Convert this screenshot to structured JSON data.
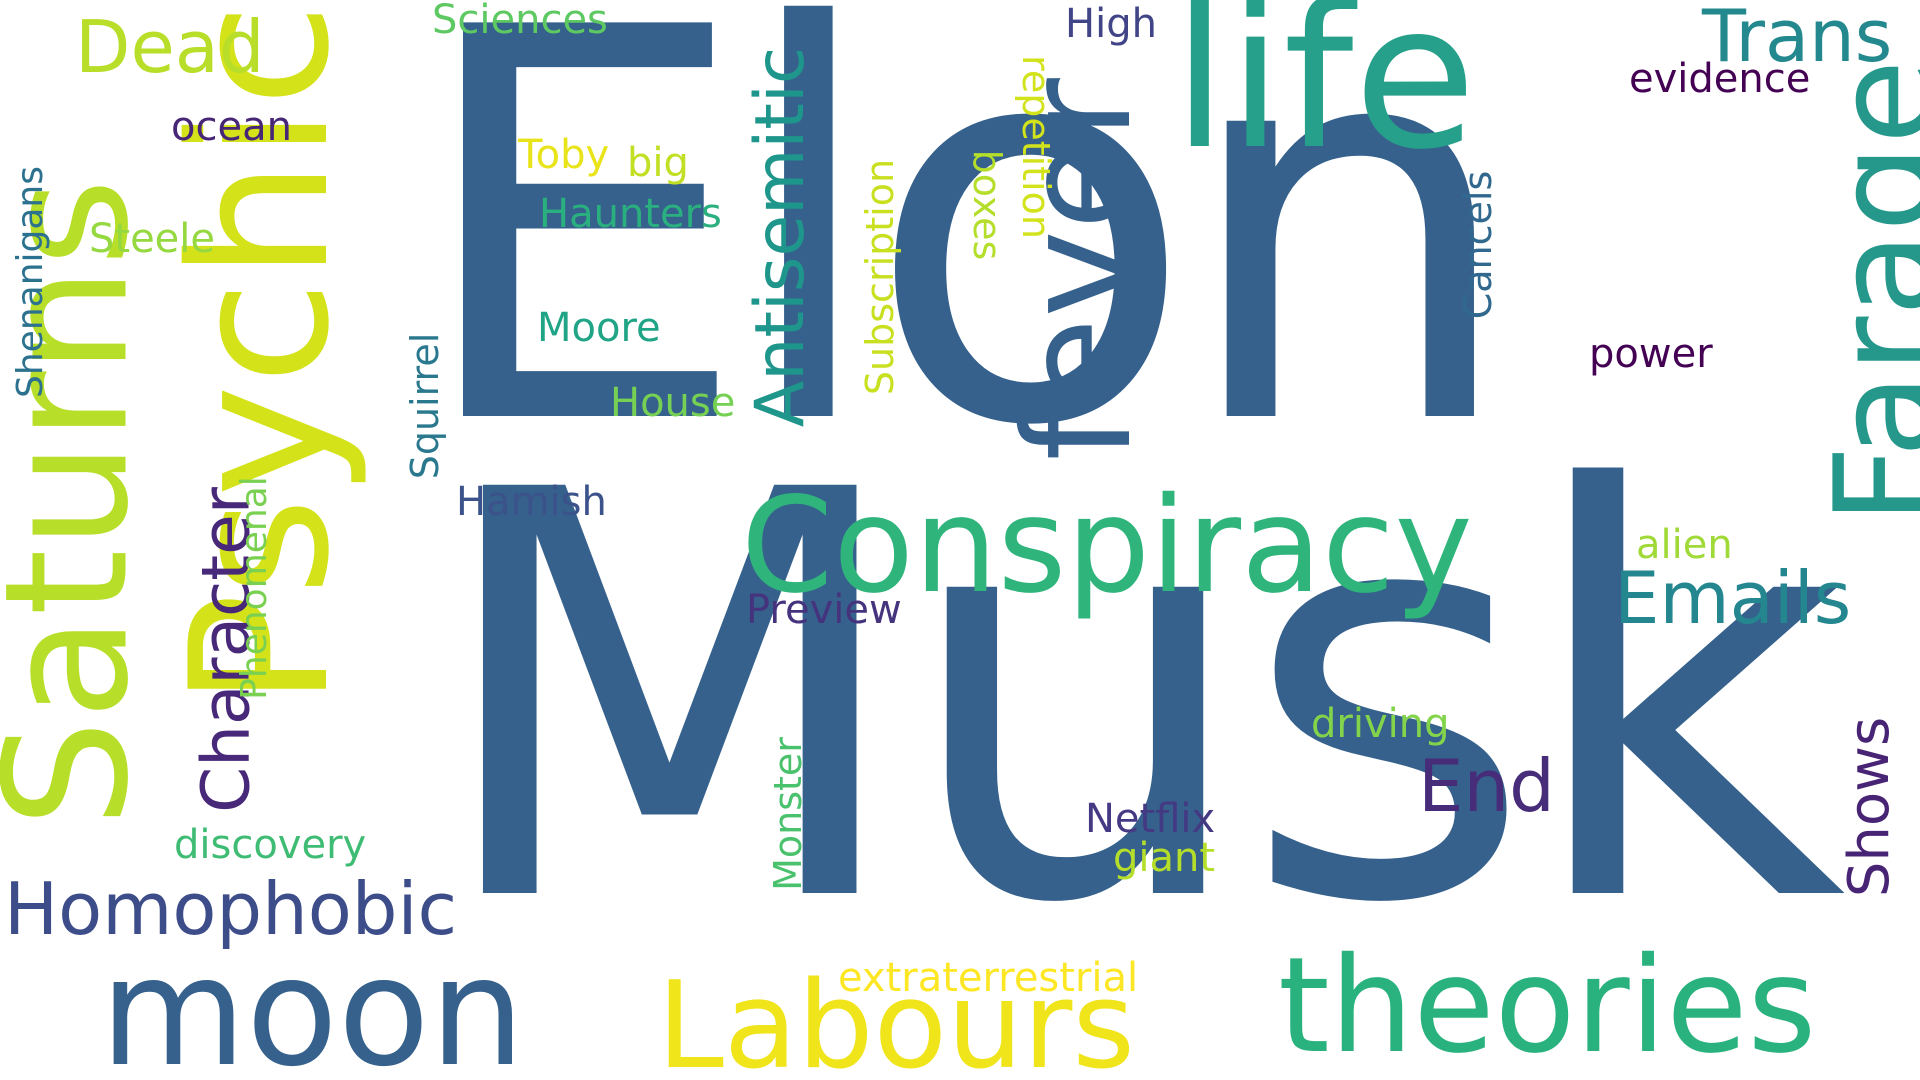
{
  "words": [
    {
      "text": "Elon",
      "color": "#35618c",
      "rotate": 0
    },
    {
      "text": "Musk",
      "color": "#35618c",
      "rotate": 0
    },
    {
      "text": "life",
      "color": "#26a08a",
      "rotate": 0
    },
    {
      "text": "Psychic",
      "color": "#d4e21a",
      "rotate": -90
    },
    {
      "text": "Saturns",
      "color": "#b7de29",
      "rotate": -90
    },
    {
      "text": "fever",
      "color": "#35618c",
      "rotate": -90
    },
    {
      "text": "Farage",
      "color": "#26988b",
      "rotate": -90
    },
    {
      "text": "Conspiracy",
      "color": "#2fb47c",
      "rotate": 0
    },
    {
      "text": "theories",
      "color": "#29b27e",
      "rotate": 0
    },
    {
      "text": "moon",
      "color": "#35618c",
      "rotate": 0
    },
    {
      "text": "Labours",
      "color": "#f0e41a",
      "rotate": 0
    },
    {
      "text": "Trans",
      "color": "#23898e",
      "rotate": 0
    },
    {
      "text": "Dead",
      "color": "#b8de29",
      "rotate": 0
    },
    {
      "text": "Antisemitic",
      "color": "#1f968b",
      "rotate": -90
    },
    {
      "text": "Homophobic",
      "color": "#3d4d8a",
      "rotate": 0
    },
    {
      "text": "Character",
      "color": "#482878",
      "rotate": -90
    },
    {
      "text": "Emails",
      "color": "#24868e",
      "rotate": 0
    },
    {
      "text": "End",
      "color": "#472c7a",
      "rotate": 0
    },
    {
      "text": "Shows",
      "color": "#482475",
      "rotate": -90
    },
    {
      "text": "Sciences",
      "color": "#5ec962",
      "rotate": 0
    },
    {
      "text": "High",
      "color": "#414487",
      "rotate": 0
    },
    {
      "text": "evidence",
      "color": "#440154",
      "rotate": 0
    },
    {
      "text": "ocean",
      "color": "#482677",
      "rotate": 0
    },
    {
      "text": "Toby",
      "color": "#e8e419",
      "rotate": 0
    },
    {
      "text": "big",
      "color": "#c2df23",
      "rotate": 0
    },
    {
      "text": "Haunters",
      "color": "#2ab07f",
      "rotate": 0
    },
    {
      "text": "Steele",
      "color": "#95d840",
      "rotate": 0
    },
    {
      "text": "Shenanigans",
      "color": "#2c728e",
      "rotate": -90
    },
    {
      "text": "Moore",
      "color": "#20a486",
      "rotate": 0
    },
    {
      "text": "House",
      "color": "#75d054",
      "rotate": 0
    },
    {
      "text": "Subscription",
      "color": "#c8e020",
      "rotate": -90
    },
    {
      "text": "repetition",
      "color": "#d2e21b",
      "rotate": 90
    },
    {
      "text": "boxes",
      "color": "#b5de2b",
      "rotate": 90
    },
    {
      "text": "Cancels",
      "color": "#31688e",
      "rotate": -90
    },
    {
      "text": "power",
      "color": "#440154",
      "rotate": 0
    },
    {
      "text": "Squirrel",
      "color": "#2a788e",
      "rotate": -90
    },
    {
      "text": "Hamish",
      "color": "#3b528b",
      "rotate": 0
    },
    {
      "text": "Phenomenal",
      "color": "#7ad151",
      "rotate": -90
    },
    {
      "text": "alien",
      "color": "#a0da39",
      "rotate": 0
    },
    {
      "text": "Preview",
      "color": "#46337e",
      "rotate": 0
    },
    {
      "text": "discovery",
      "color": "#3fbc73",
      "rotate": 0
    },
    {
      "text": "driving",
      "color": "#84d44b",
      "rotate": 0
    },
    {
      "text": "Netflix",
      "color": "#443983",
      "rotate": 0
    },
    {
      "text": "giant",
      "color": "#b5de2b",
      "rotate": 0
    },
    {
      "text": "Monster",
      "color": "#4ac16d",
      "rotate": -90
    },
    {
      "text": "extraterrestrial",
      "color": "#fde725",
      "rotate": 0
    }
  ]
}
